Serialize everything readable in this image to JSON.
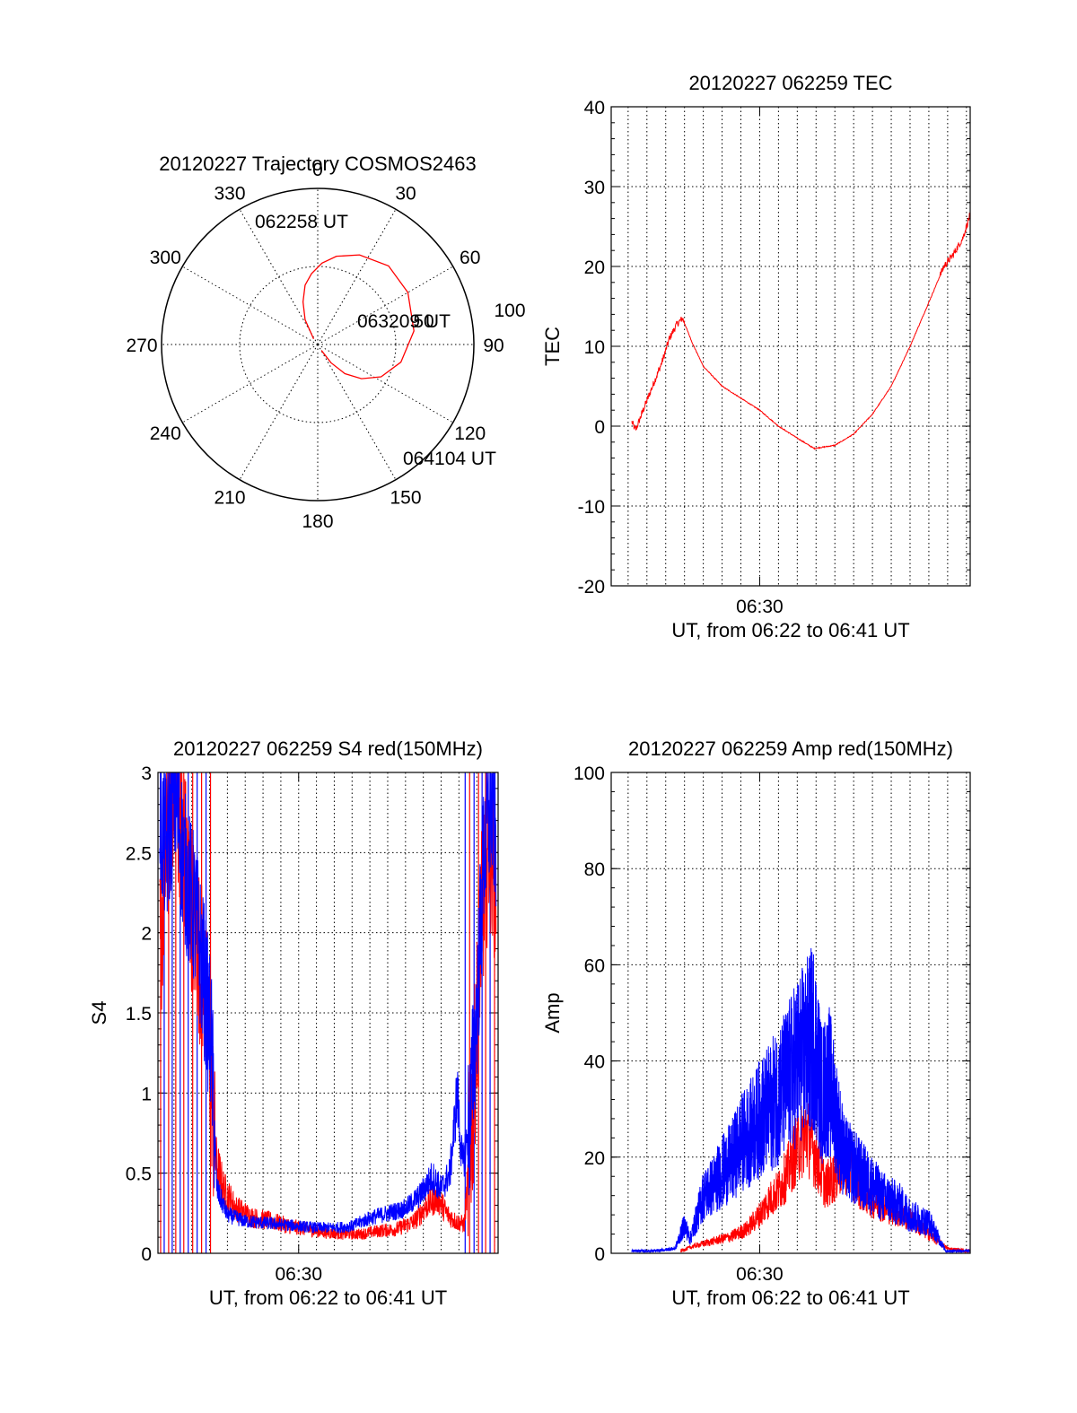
{
  "chart_data": [
    {
      "type": "polar",
      "title": "20120227 Trajectory COSMOS2463",
      "angle_labels": [
        "0",
        "30",
        "60",
        "90",
        "120",
        "150",
        "180",
        "210",
        "240",
        "270",
        "300",
        "330"
      ],
      "radius_label": "100",
      "radius_inner_label": "50",
      "annotations": {
        "start": "062258 UT",
        "mid": "063209 UT",
        "end": "064104 UT"
      },
      "colors": {
        "trajectory": "#ff0000"
      },
      "trajectory": [
        [
          324,
          86
        ],
        [
          333,
          74
        ],
        [
          341,
          64
        ],
        [
          348,
          55
        ],
        [
          355,
          49
        ],
        [
          3,
          43
        ],
        [
          12,
          38
        ],
        [
          25,
          33
        ],
        [
          42,
          29
        ],
        [
          60,
          30
        ],
        [
          82,
          34
        ],
        [
          102,
          41
        ],
        [
          117,
          49
        ],
        [
          128,
          58
        ],
        [
          137,
          67
        ],
        [
          144,
          77
        ],
        [
          148,
          86
        ]
      ]
    },
    {
      "type": "line",
      "title": "20120227 062259 TEC",
      "ylabel": "TEC",
      "xlabel": "UT, from 06:22 to 06:41 UT",
      "xtick_label": "06:30",
      "yticks": [
        "-20",
        "-10",
        "0",
        "10",
        "20",
        "30",
        "40"
      ],
      "ylim": [
        -20,
        40
      ],
      "xlim_min": [
        22.1,
        41.2
      ],
      "colors": {
        "red": "#ff0000"
      },
      "series": [
        {
          "values": [
            [
              23.2,
              0.5
            ],
            [
              23.4,
              -0.5
            ],
            [
              23.8,
              2
            ],
            [
              24.3,
              5
            ],
            [
              24.8,
              8
            ],
            [
              25.2,
              11
            ],
            [
              25.6,
              12.8
            ],
            [
              25.9,
              13.5
            ],
            [
              26.4,
              10.5
            ],
            [
              27,
              7.5
            ],
            [
              28,
              5
            ],
            [
              29,
              3.5
            ],
            [
              30,
              2
            ],
            [
              31,
              0
            ],
            [
              32,
              -1.5
            ],
            [
              32.9,
              -2.8
            ],
            [
              34,
              -2.4
            ],
            [
              35,
              -1
            ],
            [
              36,
              1.5
            ],
            [
              37,
              5
            ],
            [
              38,
              10
            ],
            [
              39,
              15.5
            ],
            [
              39.8,
              20
            ],
            [
              40.3,
              21.5
            ],
            [
              40.8,
              23.5
            ],
            [
              41.2,
              26.5
            ]
          ]
        }
      ]
    },
    {
      "type": "line",
      "title": "20120227 062259 S4 red(150MHz)",
      "ylabel": "S4",
      "xlabel": "UT, from 06:22 to 06:41 UT",
      "xtick_label": "06:30",
      "yticks": [
        "0",
        "0.5",
        "1",
        "1.5",
        "2",
        "2.5",
        "3"
      ],
      "ylim": [
        0,
        3
      ],
      "xlim_min": [
        22.1,
        41.2
      ],
      "colors": {
        "red": "#ff0000",
        "blue": "#0000ff"
      },
      "series": [
        {
          "values": [
            [
              22.2,
              1.8
            ],
            [
              22.5,
              2.4
            ],
            [
              23,
              3
            ],
            [
              23.6,
              2.5
            ],
            [
              24.2,
              2
            ],
            [
              24.7,
              1.7
            ],
            [
              25.1,
              1.1
            ],
            [
              25.3,
              0.6
            ],
            [
              25.8,
              0.4
            ],
            [
              26.5,
              0.28
            ],
            [
              27.5,
              0.22
            ],
            [
              28.5,
              0.2
            ],
            [
              29.5,
              0.17
            ],
            [
              30.5,
              0.15
            ],
            [
              31.5,
              0.13
            ],
            [
              32.5,
              0.12
            ],
            [
              33.5,
              0.12
            ],
            [
              34.5,
              0.14
            ],
            [
              35.5,
              0.15
            ],
            [
              36.5,
              0.2
            ],
            [
              37.2,
              0.3
            ],
            [
              37.8,
              0.35
            ],
            [
              38.3,
              0.25
            ],
            [
              38.8,
              0.2
            ],
            [
              39.3,
              0.18
            ],
            [
              39.8,
              0.9
            ],
            [
              40.2,
              2
            ],
            [
              40.7,
              2.6
            ],
            [
              41.1,
              2.3
            ]
          ]
        },
        {
          "values": [
            [
              22.2,
              2.7
            ],
            [
              22.6,
              2.5
            ],
            [
              23,
              2.9
            ],
            [
              23.6,
              2.4
            ],
            [
              24.2,
              2.1
            ],
            [
              24.7,
              1.7
            ],
            [
              25.1,
              1.3
            ],
            [
              25.4,
              0.4
            ],
            [
              26,
              0.24
            ],
            [
              27,
              0.2
            ],
            [
              28,
              0.19
            ],
            [
              29,
              0.18
            ],
            [
              30,
              0.17
            ],
            [
              31,
              0.16
            ],
            [
              32,
              0.16
            ],
            [
              33,
              0.17
            ],
            [
              34,
              0.22
            ],
            [
              35,
              0.25
            ],
            [
              36,
              0.28
            ],
            [
              36.8,
              0.36
            ],
            [
              37.5,
              0.48
            ],
            [
              38,
              0.4
            ],
            [
              38.5,
              0.5
            ],
            [
              38.9,
              1.0
            ],
            [
              39.2,
              0.55
            ],
            [
              39.6,
              0.8
            ],
            [
              40,
              1.5
            ],
            [
              40.4,
              2.5
            ],
            [
              40.8,
              2.8
            ],
            [
              41.1,
              2.6
            ]
          ]
        }
      ]
    },
    {
      "type": "line",
      "title": "20120227 062259 Amp red(150MHz)",
      "ylabel": "Amp",
      "xlabel": "UT, from 06:22 to 06:41 UT",
      "xtick_label": "06:30",
      "yticks": [
        "0",
        "20",
        "40",
        "60",
        "80",
        "100"
      ],
      "ylim": [
        0,
        100
      ],
      "xlim_min": [
        22.1,
        41.2
      ],
      "colors": {
        "red": "#ff0000",
        "blue": "#0000ff"
      },
      "series": [
        {
          "values": [
            [
              25.8,
              0.5
            ],
            [
              26.5,
              1.5
            ],
            [
              27.5,
              2.5
            ],
            [
              28.5,
              3.5
            ],
            [
              29.3,
              5
            ],
            [
              30,
              8
            ],
            [
              30.5,
              11
            ],
            [
              31,
              13
            ],
            [
              31.5,
              17
            ],
            [
              32,
              22
            ],
            [
              32.5,
              25
            ],
            [
              33,
              20
            ],
            [
              33.5,
              14
            ],
            [
              34,
              16
            ],
            [
              34.5,
              19
            ],
            [
              35,
              16
            ],
            [
              35.5,
              13
            ],
            [
              36,
              11
            ],
            [
              37,
              9
            ],
            [
              38,
              7
            ],
            [
              39,
              4
            ],
            [
              40,
              1
            ],
            [
              41,
              0.5
            ]
          ]
        },
        {
          "values": [
            [
              23.2,
              0.5
            ],
            [
              24.5,
              0.5
            ],
            [
              25.5,
              1
            ],
            [
              26,
              6
            ],
            [
              26.3,
              3
            ],
            [
              27,
              12
            ],
            [
              27.5,
              14
            ],
            [
              28,
              17
            ],
            [
              28.5,
              19
            ],
            [
              29,
              23
            ],
            [
              29.5,
              25
            ],
            [
              30,
              28
            ],
            [
              30.5,
              30
            ],
            [
              31,
              33
            ],
            [
              31.5,
              36
            ],
            [
              32,
              40
            ],
            [
              32.4,
              42
            ],
            [
              32.9,
              45
            ],
            [
              33.3,
              33
            ],
            [
              33.7,
              36
            ],
            [
              34,
              30
            ],
            [
              34.5,
              20
            ],
            [
              35,
              18
            ],
            [
              35.5,
              16
            ],
            [
              36,
              14
            ],
            [
              36.5,
              12
            ],
            [
              37,
              11
            ],
            [
              37.5,
              10
            ],
            [
              38,
              8
            ],
            [
              38.5,
              7
            ],
            [
              39,
              6.5
            ],
            [
              39.4,
              4
            ],
            [
              39.9,
              0.5
            ],
            [
              41.2,
              0.5
            ]
          ]
        }
      ]
    }
  ]
}
